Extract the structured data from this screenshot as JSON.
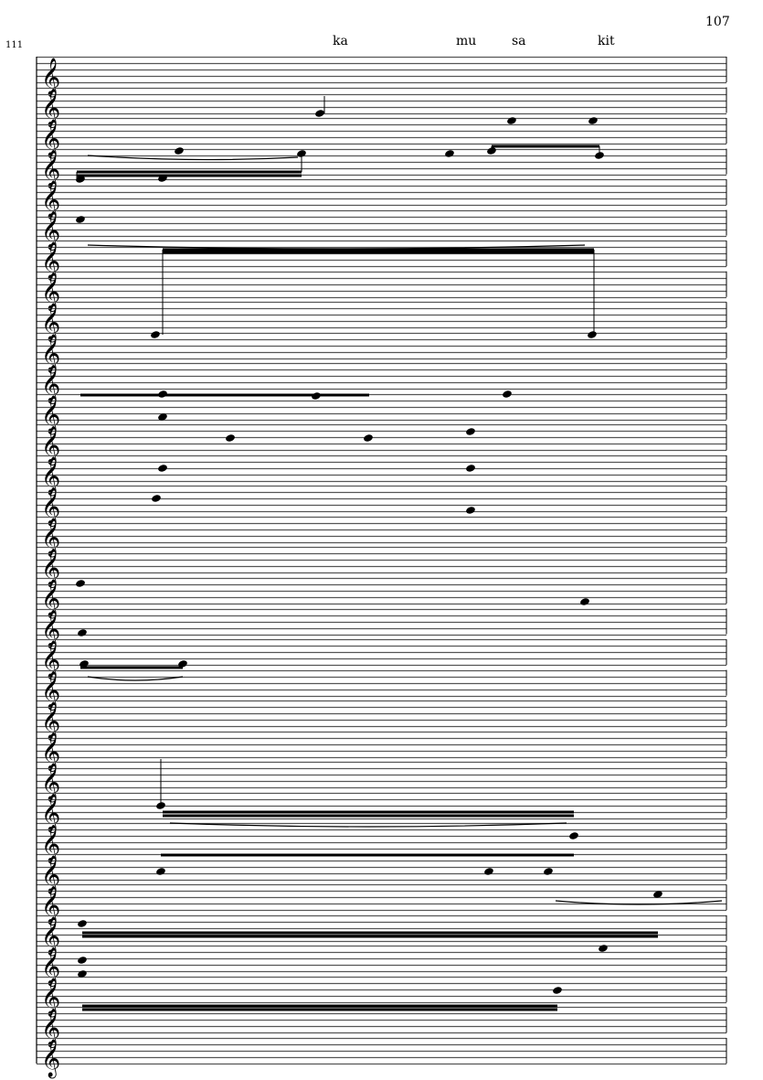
{
  "page": {
    "number": "107",
    "measure_number": "111"
  },
  "lyrics": [
    "ka",
    "mu",
    "sa",
    "kit"
  ],
  "score": {
    "staff_count": 33,
    "lines_per_staff": 5,
    "clef": "treble-clef",
    "ink_color": "#000000",
    "staff_line_color": "#555555"
  }
}
